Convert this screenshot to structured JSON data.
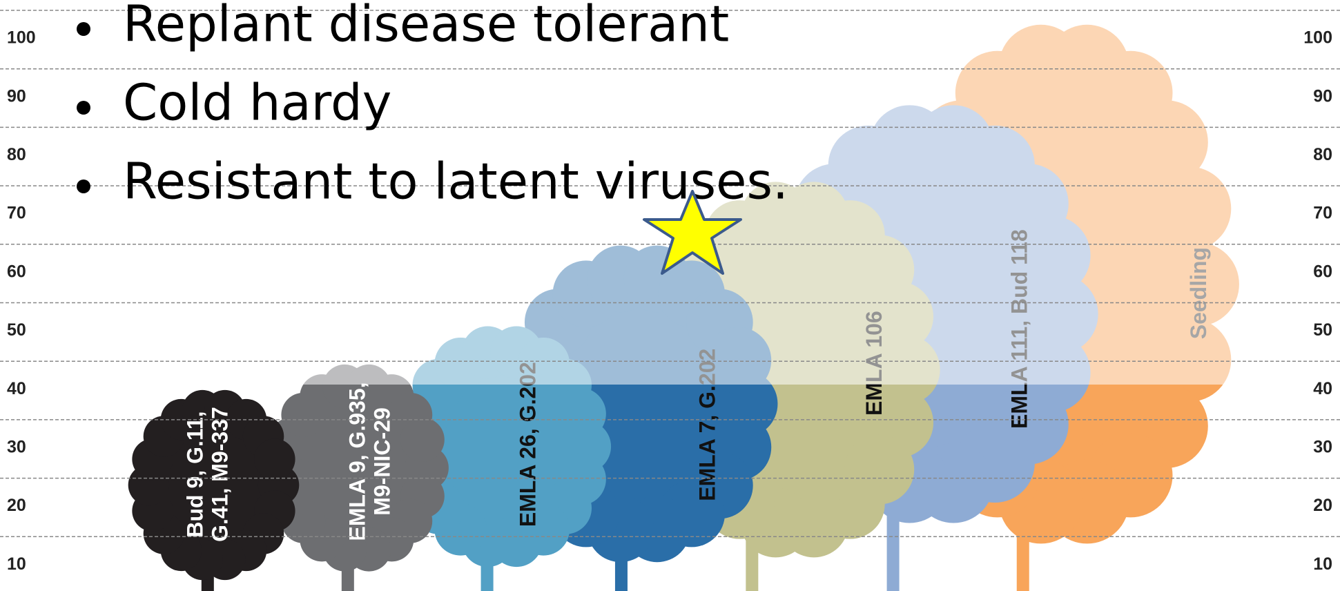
{
  "axis": {
    "left_ticks": [
      100,
      90,
      80,
      70,
      60,
      50,
      40,
      30,
      20,
      10
    ],
    "right_ticks": [
      100,
      90,
      80,
      70,
      60,
      50,
      40,
      30,
      20,
      10
    ]
  },
  "bullets": [
    "Replant disease tolerant",
    "Cold hardy",
    "Resistant to latent viruses."
  ],
  "trees": [
    {
      "label_lines": [
        "Seedling"
      ]
    },
    {
      "label_lines": [
        "EMLA 111, Bud 118"
      ]
    },
    {
      "label_lines": [
        "EMLA 106"
      ]
    },
    {
      "label_lines": [
        "EMLA 7, G.202"
      ]
    },
    {
      "label_lines": [
        "EMLA 26, G.202"
      ]
    },
    {
      "label_lines": [
        "EMLA 9, G.935,",
        "M9-NIC-29"
      ]
    },
    {
      "label_lines": [
        "Bud 9, G.11,",
        "G.41, M9-337"
      ]
    }
  ]
}
